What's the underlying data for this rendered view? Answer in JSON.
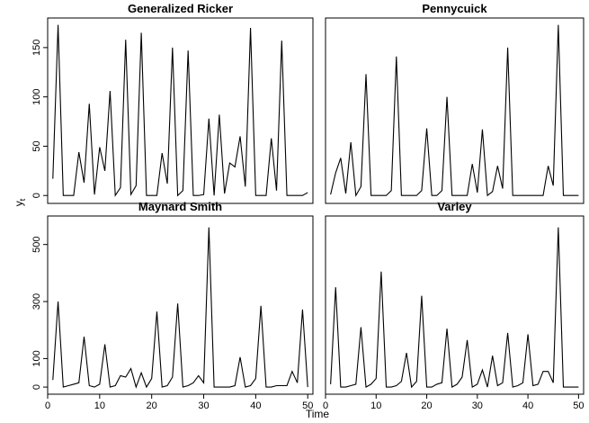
{
  "figure": {
    "xlabel": "Time",
    "ylabel_main": "y",
    "ylabel_sub": "t"
  },
  "chart_data": [
    {
      "type": "line",
      "title": "Generalized Ricker",
      "xlim": [
        0,
        51
      ],
      "ylim": [
        -8,
        180
      ],
      "xticks": [
        0,
        10,
        20,
        30,
        40,
        50
      ],
      "yticks": [
        0,
        50,
        100,
        150
      ],
      "show_x_ticks": false,
      "show_y_ticks": true,
      "x": [
        1,
        2,
        3,
        4,
        5,
        6,
        7,
        8,
        9,
        10,
        11,
        12,
        13,
        14,
        15,
        16,
        17,
        18,
        19,
        20,
        21,
        22,
        23,
        24,
        25,
        26,
        27,
        28,
        29,
        30,
        31,
        32,
        33,
        34,
        35,
        36,
        37,
        38,
        39,
        40,
        41,
        42,
        43,
        44,
        45,
        46,
        47,
        48,
        49,
        50
      ],
      "y": [
        17,
        173,
        0,
        0,
        0,
        44,
        13,
        93,
        1,
        49,
        25,
        106,
        0,
        8,
        158,
        1,
        10,
        165,
        0,
        0,
        0,
        43,
        12,
        150,
        0,
        5,
        147,
        0,
        0,
        1,
        78,
        0,
        82,
        2,
        33,
        29,
        60,
        9,
        170,
        0,
        0,
        0,
        58,
        5,
        157,
        0,
        0,
        0,
        0,
        3
      ]
    },
    {
      "type": "line",
      "title": "Pennycuick",
      "xlim": [
        0,
        51
      ],
      "ylim": [
        -8,
        180
      ],
      "xticks": [
        0,
        10,
        20,
        30,
        40,
        50
      ],
      "yticks": [
        0,
        50,
        100,
        150
      ],
      "show_x_ticks": false,
      "show_y_ticks": false,
      "x": [
        1,
        2,
        3,
        4,
        5,
        6,
        7,
        8,
        9,
        10,
        11,
        12,
        13,
        14,
        15,
        16,
        17,
        18,
        19,
        20,
        21,
        22,
        23,
        24,
        25,
        26,
        27,
        28,
        29,
        30,
        31,
        32,
        33,
        34,
        35,
        36,
        37,
        38,
        39,
        40,
        41,
        42,
        43,
        44,
        45,
        46,
        47,
        48,
        49,
        50
      ],
      "y": [
        1,
        23,
        38,
        2,
        54,
        0,
        9,
        123,
        0,
        0,
        0,
        0,
        5,
        141,
        0,
        0,
        0,
        0,
        5,
        68,
        0,
        0,
        5,
        100,
        0,
        0,
        0,
        0,
        32,
        3,
        67,
        0,
        4,
        30,
        7,
        150,
        0,
        0,
        0,
        0,
        0,
        0,
        0,
        30,
        10,
        173,
        0,
        0,
        0,
        0
      ]
    },
    {
      "type": "line",
      "title": "Maynard Smith",
      "xlim": [
        0,
        51
      ],
      "ylim": [
        -25,
        600
      ],
      "xticks": [
        0,
        10,
        20,
        30,
        40,
        50
      ],
      "yticks": [
        0,
        100,
        300,
        500
      ],
      "show_x_ticks": true,
      "show_y_ticks": true,
      "x": [
        1,
        2,
        3,
        4,
        5,
        6,
        7,
        8,
        9,
        10,
        11,
        12,
        13,
        14,
        15,
        16,
        17,
        18,
        19,
        20,
        21,
        22,
        23,
        24,
        25,
        26,
        27,
        28,
        29,
        30,
        31,
        32,
        33,
        34,
        35,
        36,
        37,
        38,
        39,
        40,
        41,
        42,
        43,
        44,
        45,
        46,
        47,
        48,
        49,
        50
      ],
      "y": [
        25,
        300,
        0,
        5,
        10,
        15,
        177,
        5,
        0,
        10,
        150,
        0,
        5,
        40,
        35,
        65,
        0,
        50,
        0,
        30,
        265,
        0,
        5,
        35,
        293,
        0,
        5,
        15,
        40,
        15,
        560,
        0,
        0,
        0,
        0,
        5,
        105,
        0,
        5,
        30,
        285,
        0,
        0,
        5,
        5,
        5,
        55,
        15,
        272,
        0
      ]
    },
    {
      "type": "line",
      "title": "Varley",
      "xlim": [
        0,
        51
      ],
      "ylim": [
        -25,
        600
      ],
      "xticks": [
        0,
        10,
        20,
        30,
        40,
        50
      ],
      "yticks": [
        0,
        100,
        300,
        500
      ],
      "show_x_ticks": true,
      "show_y_ticks": false,
      "x": [
        1,
        2,
        3,
        4,
        5,
        6,
        7,
        8,
        9,
        10,
        11,
        12,
        13,
        14,
        15,
        16,
        17,
        18,
        19,
        20,
        21,
        22,
        23,
        24,
        25,
        26,
        27,
        28,
        29,
        30,
        31,
        32,
        33,
        34,
        35,
        36,
        37,
        38,
        39,
        40,
        41,
        42,
        43,
        44,
        45,
        46,
        47,
        48,
        49,
        50
      ],
      "y": [
        10,
        350,
        0,
        0,
        5,
        10,
        210,
        0,
        10,
        30,
        405,
        0,
        0,
        5,
        20,
        120,
        0,
        20,
        320,
        0,
        0,
        10,
        15,
        205,
        0,
        10,
        35,
        165,
        0,
        10,
        60,
        0,
        110,
        5,
        15,
        190,
        0,
        5,
        15,
        185,
        5,
        10,
        55,
        55,
        15,
        560,
        0,
        0,
        0,
        0
      ]
    }
  ]
}
